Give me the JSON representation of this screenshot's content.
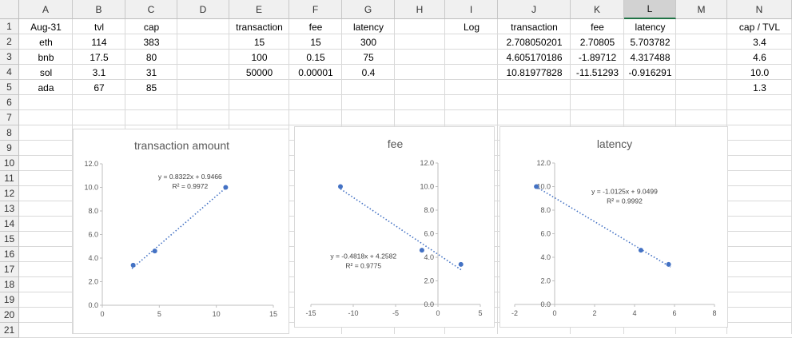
{
  "columns": [
    "A",
    "B",
    "C",
    "D",
    "E",
    "F",
    "G",
    "H",
    "I",
    "J",
    "K",
    "L",
    "M",
    "N"
  ],
  "selected_column": "L",
  "rows": [
    "1",
    "2",
    "3",
    "4",
    "5",
    "6",
    "7",
    "8",
    "9",
    "10",
    "11",
    "12",
    "13",
    "14",
    "15",
    "16",
    "17",
    "18",
    "19",
    "20",
    "21"
  ],
  "cells": {
    "A1": "Aug-31",
    "B1": "tvl",
    "C1": "cap",
    "E1": "transaction",
    "F1": "fee",
    "G1": "latency",
    "I1": "Log",
    "J1": "transaction",
    "K1": "fee",
    "L1": "latency",
    "N1": "cap / TVL",
    "A2": "eth",
    "B2": "114",
    "C2": "383",
    "E2": "15",
    "F2": "15",
    "G2": "300",
    "J2": "2.708050201",
    "K2": "2.70805",
    "L2": "5.703782",
    "N2": "3.4",
    "A3": "bnb",
    "B3": "17.5",
    "C3": "80",
    "E3": "100",
    "F3": "0.15",
    "G3": "75",
    "J3": "4.605170186",
    "K3": "-1.89712",
    "L3": "4.317488",
    "N3": "4.6",
    "A4": "sol",
    "B4": "3.1",
    "C4": "31",
    "E4": "50000",
    "F4": "0.00001",
    "G4": "0.4",
    "J4": "10.81977828",
    "K4": "-11.51293",
    "L4": "-0.916291",
    "N4": "10.0",
    "A5": "ada",
    "B5": "67",
    "C5": "85",
    "N5": "1.3"
  },
  "charts": [
    {
      "id": "transaction",
      "title": "transaction amount",
      "type": "scatter",
      "xlim": [
        0,
        15
      ],
      "xticks": [
        "0",
        "5",
        "10",
        "15"
      ],
      "xtick_values": [
        0,
        5,
        10,
        15
      ],
      "ylim": [
        0,
        12
      ],
      "yticks": [
        "0.0",
        "2.0",
        "4.0",
        "6.0",
        "8.0",
        "10.0",
        "12.0"
      ],
      "ytick_values": [
        0,
        2,
        4,
        6,
        8,
        10,
        12
      ],
      "points": [
        [
          2.708,
          3.4
        ],
        [
          4.605,
          4.6
        ],
        [
          10.82,
          10.0
        ]
      ],
      "trendline": {
        "slope": 0.8322,
        "intercept": 0.9466,
        "x_range": [
          2.6,
          10.9
        ]
      },
      "equation": "y = 0.8322x + 0.9466",
      "r2": "R² = 0.9972",
      "eq_at": [
        7.7,
        10.7
      ]
    },
    {
      "id": "fee",
      "title": "fee",
      "type": "scatter",
      "xlim": [
        -15,
        5
      ],
      "xticks": [
        "-15",
        "-10",
        "-5",
        "0",
        "5"
      ],
      "xtick_values": [
        -15,
        -10,
        -5,
        0,
        5
      ],
      "ylim": [
        0,
        12
      ],
      "yticks": [
        "0.0",
        "2.0",
        "4.0",
        "6.0",
        "8.0",
        "10.0",
        "12.0"
      ],
      "ytick_values": [
        0,
        2,
        4,
        6,
        8,
        10,
        12
      ],
      "points": [
        [
          -11.51,
          10.0
        ],
        [
          -1.897,
          4.6
        ],
        [
          2.708,
          3.4
        ]
      ],
      "trendline": {
        "slope": -0.4818,
        "intercept": 4.2582,
        "x_range": [
          -11.5,
          2.8
        ]
      },
      "equation": "y = -0.4818x + 4.2582",
      "r2": "R² = 0.9775",
      "eq_at": [
        -8.8,
        3.9
      ]
    },
    {
      "id": "latency",
      "title": "latency",
      "type": "scatter",
      "xlim": [
        -2,
        8
      ],
      "xticks": [
        "-2",
        "0",
        "2",
        "4",
        "6",
        "8"
      ],
      "xtick_values": [
        -2,
        0,
        2,
        4,
        6,
        8
      ],
      "ylim": [
        0,
        12
      ],
      "yticks": [
        "0.0",
        "2.0",
        "4.0",
        "6.0",
        "8.0",
        "10.0",
        "12.0"
      ],
      "ytick_values": [
        0,
        2,
        4,
        6,
        8,
        10,
        12
      ],
      "points": [
        [
          -0.916,
          10.0
        ],
        [
          4.317,
          4.6
        ],
        [
          5.704,
          3.4
        ]
      ],
      "trendline": {
        "slope": -1.0125,
        "intercept": 9.0499,
        "x_range": [
          -0.95,
          5.8
        ]
      },
      "equation": "y = -1.0125x + 9.0499",
      "r2": "R² = 0.9992",
      "eq_at": [
        3.5,
        9.4
      ]
    }
  ],
  "colors": {
    "marker": "#4472c4",
    "grid": "#d9d9d9",
    "axis": "#bfbfbf",
    "selected_header": "#217346"
  }
}
